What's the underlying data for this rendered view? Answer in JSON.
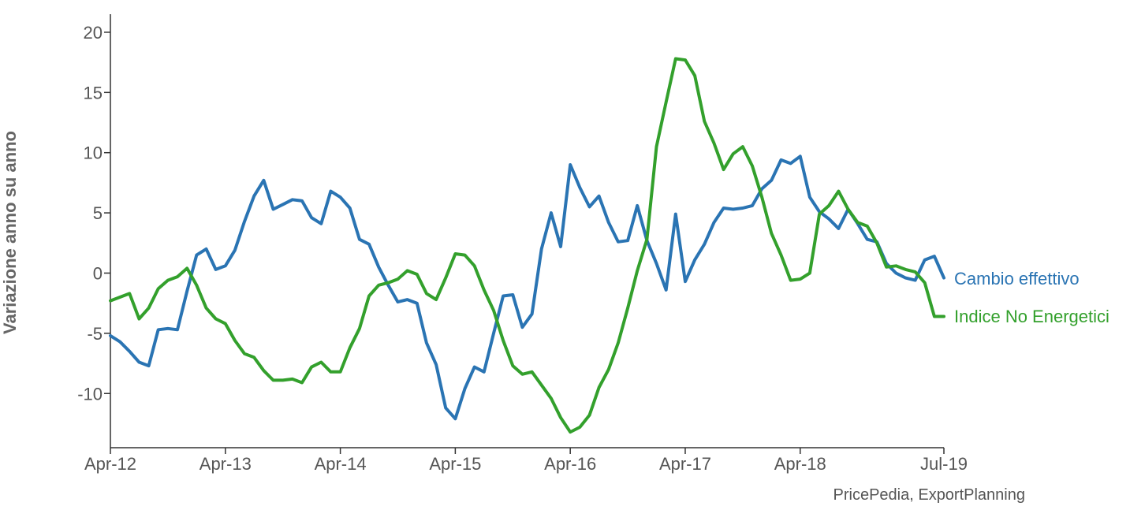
{
  "chart_data": {
    "type": "line",
    "title": "",
    "ylabel": "Variazione anno su anno",
    "xlabel": "",
    "ylim": [
      -14.5,
      21.5
    ],
    "yticks": [
      20,
      15,
      10,
      5,
      0,
      -5,
      -10
    ],
    "x_ticks": [
      "Apr-12",
      "Apr-13",
      "Apr-14",
      "Apr-15",
      "Apr-16",
      "Apr-17",
      "Apr-18",
      "Jul-19"
    ],
    "x_range": [
      "Apr-12",
      "Jul-19"
    ],
    "grid": false,
    "legend": "inline labels at right end of each series",
    "source": "PricePedia, ExportPlanning",
    "series": [
      {
        "name": "Cambio effettivo",
        "color": "#2a74b3",
        "values": [
          -5.2,
          -5.7,
          -6.5,
          -7.4,
          -7.7,
          -4.7,
          -4.6,
          -4.7,
          -1.5,
          1.5,
          2.0,
          0.3,
          0.6,
          1.9,
          4.3,
          6.4,
          7.7,
          5.3,
          5.7,
          6.1,
          6.0,
          4.6,
          4.1,
          6.8,
          6.3,
          5.4,
          2.8,
          2.4,
          0.5,
          -1.0,
          -2.4,
          -2.2,
          -2.5,
          -5.8,
          -7.6,
          -11.2,
          -12.1,
          -9.6,
          -7.8,
          -8.2,
          -5.0,
          -1.9,
          -1.8,
          -4.5,
          -3.4,
          2.0,
          5.0,
          2.2,
          9.0,
          7.1,
          5.5,
          6.4,
          4.2,
          2.6,
          2.7,
          5.6,
          2.7,
          0.8,
          -1.4,
          4.9,
          -0.7,
          1.1,
          2.4,
          4.2,
          5.4,
          5.3,
          5.4,
          5.6,
          7.0,
          7.7,
          9.4,
          9.1,
          9.7,
          6.3,
          5.1,
          4.5,
          3.7,
          5.3,
          4.1,
          2.8,
          2.6,
          0.8,
          0.0,
          -0.4,
          -0.6,
          1.1,
          1.4,
          -0.4
        ]
      },
      {
        "name": "Indice No Energetici",
        "color": "#33a02c",
        "values": [
          -2.3,
          -2.0,
          -1.7,
          -3.8,
          -2.9,
          -1.3,
          -0.6,
          -0.3,
          0.4,
          -1.0,
          -2.9,
          -3.8,
          -4.2,
          -5.6,
          -6.7,
          -7.0,
          -8.1,
          -8.9,
          -8.9,
          -8.8,
          -9.1,
          -7.8,
          -7.4,
          -8.2,
          -8.2,
          -6.2,
          -4.6,
          -1.9,
          -1.0,
          -0.8,
          -0.5,
          0.2,
          -0.1,
          -1.7,
          -2.2,
          -0.4,
          1.6,
          1.5,
          0.6,
          -1.4,
          -3.1,
          -5.6,
          -7.7,
          -8.4,
          -8.2,
          -9.3,
          -10.4,
          -12.0,
          -13.2,
          -12.8,
          -11.8,
          -9.5,
          -8.0,
          -5.8,
          -2.9,
          0.2,
          2.8,
          10.5,
          14.2,
          17.8,
          17.7,
          16.4,
          12.6,
          10.8,
          8.6,
          9.9,
          10.5,
          8.9,
          6.3,
          3.3,
          1.5,
          -0.6,
          -0.5,
          0.0,
          4.9,
          5.6,
          6.8,
          5.3,
          4.2,
          3.9,
          2.5,
          0.5,
          0.6,
          0.3,
          0.1,
          -0.8,
          -3.6,
          -3.6
        ]
      }
    ]
  }
}
